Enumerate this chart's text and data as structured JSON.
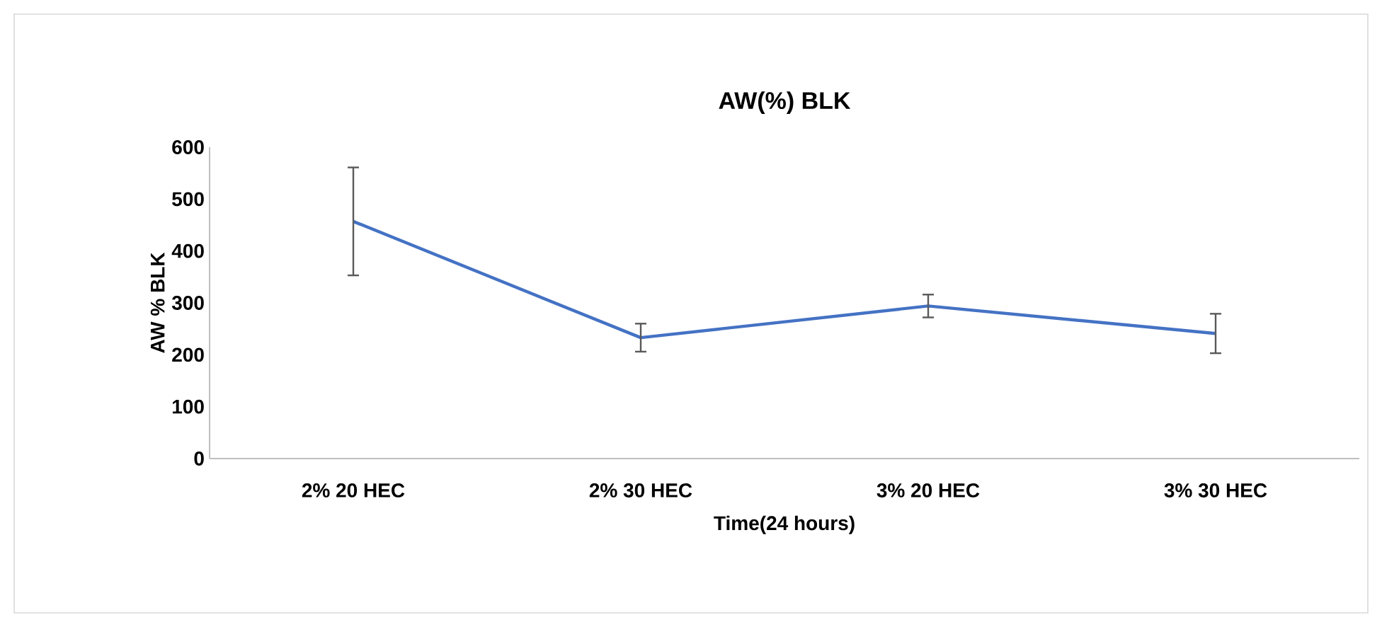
{
  "chart_data": {
    "type": "line",
    "title": "AW(%) BLK",
    "xlabel": "Time(24 hours)",
    "ylabel": "AW  % BLK",
    "categories": [
      "2% 20 HEC",
      "2% 30 HEC",
      "3% 20 HEC",
      "3% 30 HEC"
    ],
    "values": [
      457,
      233,
      294,
      241
    ],
    "errors": [
      104,
      27,
      22,
      38
    ],
    "color": "#4472c4",
    "ylim": [
      0,
      600
    ],
    "yticks": [
      0,
      100,
      200,
      300,
      400,
      500,
      600
    ],
    "grid": false,
    "marker": "none",
    "line_style": "solid"
  }
}
